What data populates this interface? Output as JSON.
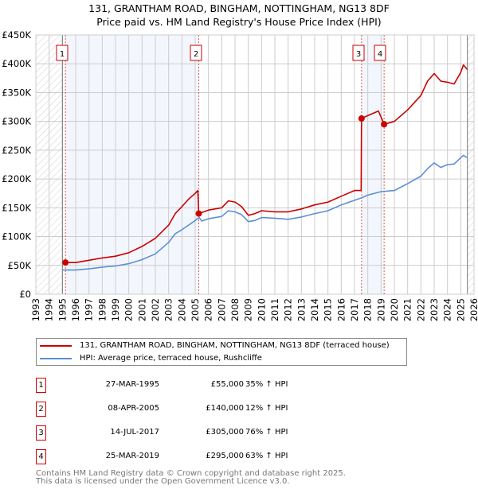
{
  "title_line1": "131, GRANTHAM ROAD, BINGHAM, NOTTINGHAM, NG13 8DF",
  "title_line2": "Price paid vs. HM Land Registry's House Price Index (HPI)",
  "chart_data": {
    "type": "line",
    "ylim": [
      0,
      450000
    ],
    "xlim": [
      1993,
      2026
    ],
    "y_ticks": [
      {
        "v": 0,
        "label": "£0"
      },
      {
        "v": 50000,
        "label": "£50K"
      },
      {
        "v": 100000,
        "label": "£100K"
      },
      {
        "v": 150000,
        "label": "£150K"
      },
      {
        "v": 200000,
        "label": "£200K"
      },
      {
        "v": 250000,
        "label": "£250K"
      },
      {
        "v": 300000,
        "label": "£300K"
      },
      {
        "v": 350000,
        "label": "£350K"
      },
      {
        "v": 400000,
        "label": "£400K"
      },
      {
        "v": 450000,
        "label": "£450K"
      }
    ],
    "x_ticks": [
      "1993",
      "1994",
      "1995",
      "1996",
      "1997",
      "1998",
      "1999",
      "2000",
      "2001",
      "2002",
      "2003",
      "2004",
      "2005",
      "2006",
      "2007",
      "2008",
      "2009",
      "2010",
      "2011",
      "2012",
      "2013",
      "2014",
      "2015",
      "2016",
      "2017",
      "2018",
      "2019",
      "2020",
      "2021",
      "2022",
      "2023",
      "2024",
      "2025",
      "2026"
    ],
    "grid": true,
    "data_range": [
      1995.0,
      2025.5
    ],
    "series": [
      {
        "name": "131, GRANTHAM ROAD, BINGHAM, NOTTINGHAM, NG13 8DF (terraced house)",
        "color": "#cc0000",
        "x": [
          1995.23,
          1996,
          1997,
          1998,
          1999,
          2000,
          2001,
          2002,
          2003,
          2003.5,
          2004,
          2004.5,
          2005,
          2005.2,
          2005.27,
          2006,
          2007,
          2007.5,
          2008,
          2008.5,
          2009,
          2009.5,
          2010,
          2011,
          2012,
          2013,
          2014,
          2015,
          2016,
          2017,
          2017.5,
          2017.53,
          2018,
          2018.8,
          2019.23,
          2020,
          2021,
          2022,
          2022.5,
          2023,
          2023.5,
          2024,
          2024.5,
          2025,
          2025.2,
          2025.5
        ],
        "y": [
          55000,
          55000,
          59000,
          63000,
          66000,
          72000,
          83000,
          97000,
          120000,
          140000,
          152000,
          165000,
          175000,
          180000,
          140000,
          146000,
          150000,
          162000,
          160000,
          152000,
          137000,
          140000,
          145000,
          143000,
          143000,
          148000,
          155000,
          160000,
          170000,
          180000,
          180000,
          305000,
          310000,
          318000,
          295000,
          300000,
          320000,
          345000,
          370000,
          383000,
          370000,
          368000,
          365000,
          385000,
          398000,
          390000
        ]
      },
      {
        "name": "HPI: Average price, terraced house, Rushcliffe",
        "color": "#5b8fd4",
        "x": [
          1995,
          1996,
          1997,
          1998,
          1999,
          2000,
          2001,
          2002,
          2003,
          2003.5,
          2004,
          2004.5,
          2005,
          2005.3,
          2005.5,
          2006,
          2007,
          2007.5,
          2008,
          2008.5,
          2009,
          2009.5,
          2010,
          2011,
          2012,
          2013,
          2014,
          2015,
          2016,
          2017,
          2017.5,
          2018,
          2019,
          2020,
          2021,
          2022,
          2022.5,
          2023,
          2023.5,
          2024,
          2024.5,
          2025,
          2025.2,
          2025.5
        ],
        "y": [
          42000,
          42000,
          44000,
          47000,
          49000,
          53000,
          60000,
          70000,
          90000,
          105000,
          112000,
          120000,
          128000,
          133000,
          127000,
          131000,
          135000,
          145000,
          143000,
          138000,
          126000,
          128000,
          133000,
          132000,
          130000,
          134000,
          140000,
          145000,
          155000,
          163000,
          167000,
          172000,
          178000,
          180000,
          192000,
          205000,
          218000,
          228000,
          220000,
          225000,
          226000,
          237000,
          241000,
          237000
        ]
      }
    ],
    "sales": [
      {
        "label": "1",
        "x": 1995.23,
        "price": 55000
      },
      {
        "label": "2",
        "x": 2005.27,
        "price": 140000
      },
      {
        "label": "3",
        "x": 2017.53,
        "price": 305000
      },
      {
        "label": "4",
        "x": 2019.23,
        "price": 295000
      }
    ]
  },
  "legend": {
    "red": "131, GRANTHAM ROAD, BINGHAM, NOTTINGHAM, NG13 8DF (terraced house)",
    "blue": "HPI: Average price, terraced house, Rushcliffe"
  },
  "sales_table": [
    {
      "num": "1",
      "date": "27-MAR-1995",
      "price": "£55,000",
      "hpi": "35% ↑ HPI"
    },
    {
      "num": "2",
      "date": "08-APR-2005",
      "price": "£140,000",
      "hpi": "12% ↑ HPI"
    },
    {
      "num": "3",
      "date": "14-JUL-2017",
      "price": "£305,000",
      "hpi": "76% ↑ HPI"
    },
    {
      "num": "4",
      "date": "25-MAR-2019",
      "price": "£295,000",
      "hpi": "63% ↑ HPI"
    }
  ],
  "footer": {
    "line1": "Contains HM Land Registry data © Crown copyright and database right 2025.",
    "line2": "This data is licensed under the Open Government Licence v3.0."
  }
}
